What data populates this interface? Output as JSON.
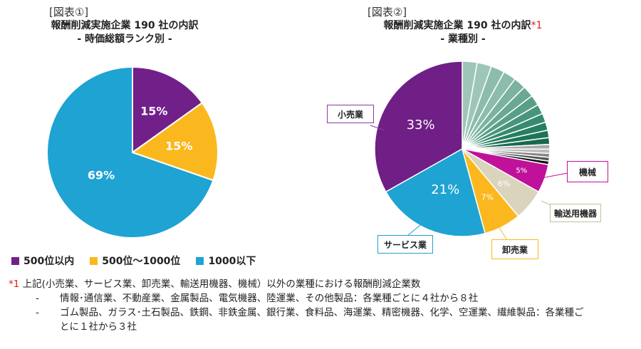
{
  "charts": {
    "left": {
      "fig_label": "[図表①]",
      "title": "報酬削減実施企業 190 社の内訳",
      "subtitle": "- 時価総額ランク別 -"
    },
    "right": {
      "fig_label": "[図表②]",
      "title": "報酬削減実施企業 190 社の内訳",
      "title_mark": "*1",
      "subtitle": "- 業種別 -"
    }
  },
  "chart_data": [
    {
      "type": "pie",
      "categories": [
        "500位以内",
        "500位～1000位",
        "1000以下"
      ],
      "values": [
        15,
        15,
        69
      ],
      "labels": [
        "15%",
        "15%",
        "69%"
      ],
      "colors": [
        "#71208a",
        "#fbb81e",
        "#1ea3d3"
      ],
      "legend": "bottom"
    },
    {
      "type": "pie",
      "categories": [
        "小売業",
        "サービス業",
        "卸売業",
        "輸送用機器",
        "機械"
      ],
      "values": [
        33,
        21,
        7,
        6,
        5
      ],
      "labels": [
        "33%",
        "21%",
        "7%",
        "6%",
        "5%"
      ],
      "colors": [
        "#6f1f85",
        "#1ea3d3",
        "#fbb81e",
        "#dad4bd",
        "#c0119a"
      ],
      "other_slices": {
        "count": 17,
        "colors": [
          "#9ec6b8",
          "#9ec6b8",
          "#8cbcac",
          "#8cbcac",
          "#7bb2a0",
          "#6aa894",
          "#599e88",
          "#48947c",
          "#378a70",
          "#267f63",
          "#1c7557",
          "#17694d",
          "#aaaaaa",
          "#bbbbbb",
          "#888888",
          "#555555",
          "#111111"
        ]
      }
    }
  ],
  "legend": [
    {
      "label": "500位以内",
      "color": "#71208a"
    },
    {
      "label": "500位～1000位",
      "color": "#fbb81e"
    },
    {
      "label": "1000以下",
      "color": "#1ea3d3"
    }
  ],
  "callouts": {
    "retail": "小売業",
    "service": "サービス業",
    "wholesale": "卸売業",
    "transport": "輸送用機器",
    "machinery": "機械"
  },
  "note": {
    "mark": "*1",
    "main": "上記(小売業、サービス業、卸売業、輸送用機器、機械）以外の業種における報酬削減企業数",
    "items": [
      {
        "dash": "-",
        "text": "情報･通信業、不動産業、金属製品、電気機器、陸運業、その他製品：各業種ごとに４社から８社"
      },
      {
        "dash": "-",
        "text": "ゴム製品、ガラス･土石製品、鉄鋼、非鉄金属、銀行業、食料品、海運業、精密機器、化学、空運業、繊維製品：各業種ご"
      },
      {
        "dash": "",
        "text": "とに１社から３社"
      }
    ]
  }
}
